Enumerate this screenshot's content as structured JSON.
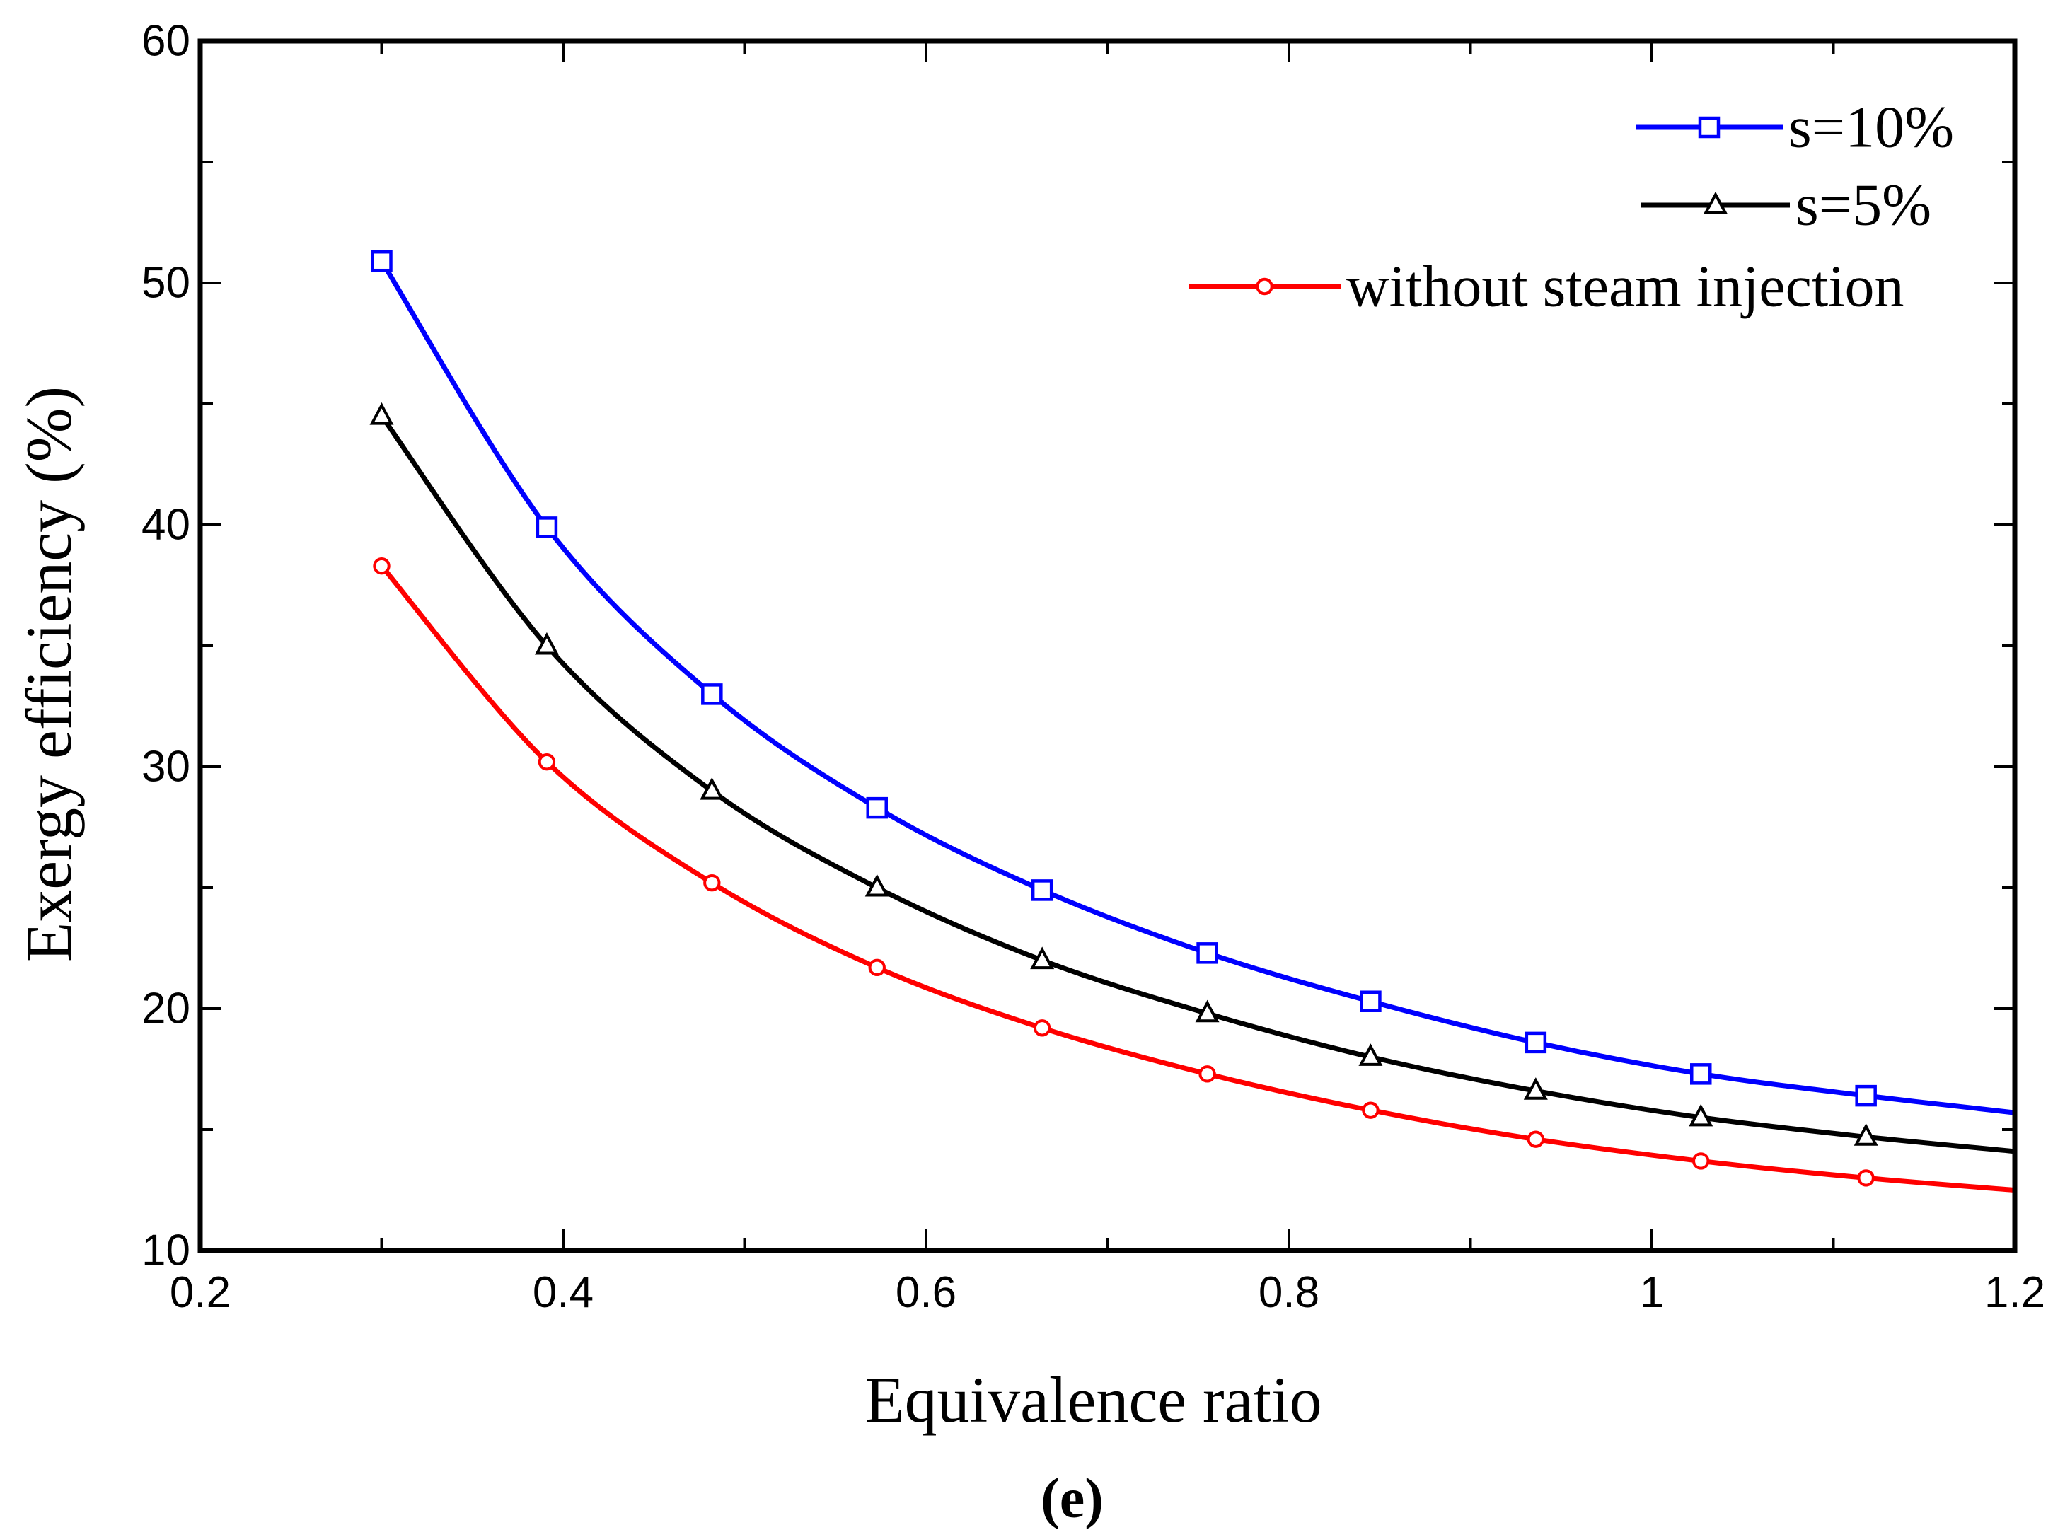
{
  "chart_data": {
    "type": "line",
    "title": "",
    "caption": "(e)",
    "xlabel": "Equivalence ratio",
    "ylabel": "Exergy efficiency (%)",
    "xlim": [
      0.2,
      1.2
    ],
    "ylim": [
      10,
      60
    ],
    "xticks": [
      0.2,
      0.4,
      0.6,
      0.8,
      1,
      1.2
    ],
    "xtick_labels": [
      "0.2",
      "0.4",
      "0.6",
      "0.8",
      "1",
      "1.2"
    ],
    "yticks": [
      10,
      20,
      30,
      40,
      50,
      60
    ],
    "ytick_labels": [
      "10",
      "20",
      "30",
      "40",
      "50",
      "60"
    ],
    "grid": false,
    "legend_position": "top-right",
    "x": [
      0.3,
      0.391,
      0.482,
      0.573,
      0.664,
      0.755,
      0.845,
      0.936,
      1.027,
      1.118
    ],
    "series": [
      {
        "name": "s=10%",
        "color": "#0000ff",
        "marker": "square",
        "values": [
          50.9,
          39.9,
          33.0,
          28.3,
          24.9,
          22.3,
          20.3,
          18.6,
          17.3,
          16.4
        ],
        "curve_end": {
          "x": 1.2,
          "y": 15.7
        }
      },
      {
        "name": "s=5%",
        "color": "#000000",
        "marker": "triangle",
        "values": [
          44.5,
          35.0,
          29.0,
          25.0,
          22.0,
          19.8,
          18.0,
          16.6,
          15.5,
          14.7
        ],
        "curve_end": {
          "x": 1.2,
          "y": 14.1
        }
      },
      {
        "name": "without steam injection",
        "color": "#ff0000",
        "marker": "circle",
        "values": [
          38.3,
          30.2,
          25.2,
          21.7,
          19.2,
          17.3,
          15.8,
          14.6,
          13.7,
          13.0
        ],
        "curve_end": {
          "x": 1.2,
          "y": 12.5
        }
      }
    ]
  }
}
